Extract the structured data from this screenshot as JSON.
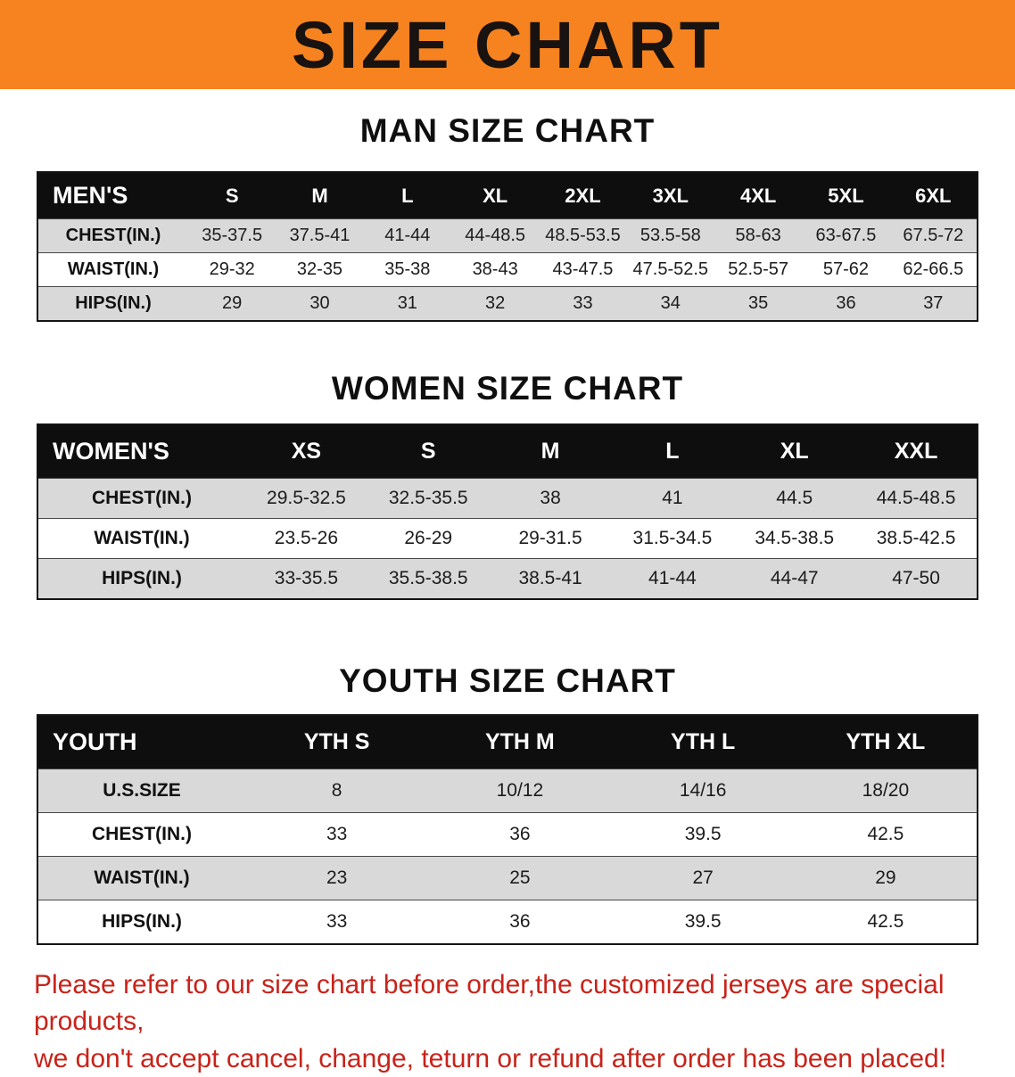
{
  "banner": {
    "title": "SIZE CHART"
  },
  "colors": {
    "banner_bg": "#f6831f",
    "table_header_bg": "#0e0e0e",
    "row_shade": "#d9d9d9",
    "notice_red": "#c8231a"
  },
  "sections": [
    {
      "title": "MAN SIZE CHART",
      "table": {
        "header": [
          "MEN'S",
          "S",
          "M",
          "L",
          "XL",
          "2XL",
          "3XL",
          "4XL",
          "5XL",
          "6XL"
        ],
        "rows": [
          [
            "CHEST(IN.)",
            "35-37.5",
            "37.5-41",
            "41-44",
            "44-48.5",
            "48.5-53.5",
            "53.5-58",
            "58-63",
            "63-67.5",
            "67.5-72"
          ],
          [
            "WAIST(IN.)",
            "29-32",
            "32-35",
            "35-38",
            "38-43",
            "43-47.5",
            "47.5-52.5",
            "52.5-57",
            "57-62",
            "62-66.5"
          ],
          [
            "HIPS(IN.)",
            "29",
            "30",
            "31",
            "32",
            "33",
            "34",
            "35",
            "36",
            "37"
          ]
        ]
      }
    },
    {
      "title": "WOMEN SIZE CHART",
      "table": {
        "header": [
          "WOMEN'S",
          "XS",
          "S",
          "M",
          "L",
          "XL",
          "XXL"
        ],
        "rows": [
          [
            "CHEST(IN.)",
            "29.5-32.5",
            "32.5-35.5",
            "38",
            "41",
            "44.5",
            "44.5-48.5"
          ],
          [
            "WAIST(IN.)",
            "23.5-26",
            "26-29",
            "29-31.5",
            "31.5-34.5",
            "34.5-38.5",
            "38.5-42.5"
          ],
          [
            "HIPS(IN.)",
            "33-35.5",
            "35.5-38.5",
            "38.5-41",
            "41-44",
            "44-47",
            "47-50"
          ]
        ]
      }
    },
    {
      "title": "YOUTH SIZE CHART",
      "table": {
        "header": [
          "YOUTH",
          "YTH S",
          "YTH M",
          "YTH L",
          "YTH XL"
        ],
        "rows": [
          [
            "U.S.SIZE",
            "8",
            "10/12",
            "14/16",
            "18/20"
          ],
          [
            "CHEST(IN.)",
            "33",
            "36",
            "39.5",
            "42.5"
          ],
          [
            "WAIST(IN.)",
            "23",
            "25",
            "27",
            "29"
          ],
          [
            "HIPS(IN.)",
            "33",
            "36",
            "39.5",
            "42.5"
          ]
        ]
      }
    }
  ],
  "footer": {
    "line1": "Please refer to our size chart before order,the customized jerseys are special products,",
    "line2": "we don't accept cancel, change, teturn or refund after order has been placed!"
  }
}
